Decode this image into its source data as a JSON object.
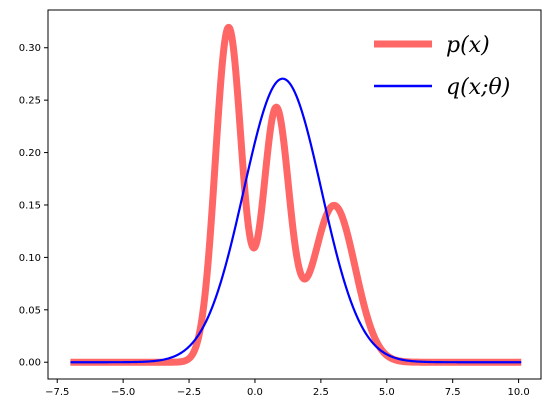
{
  "chart_data": {
    "type": "line",
    "title": "",
    "xlabel": "",
    "ylabel": "",
    "xlim": [
      -7.85,
      10.85
    ],
    "ylim": [
      -0.016,
      0.336
    ],
    "x_range": [
      -7,
      10.1
    ],
    "xticks": [
      -7.5,
      -5.0,
      -2.5,
      0.0,
      2.5,
      5.0,
      7.5,
      10.0
    ],
    "xtick_labels": [
      "−7.5",
      "−5.0",
      "−2.5",
      "0.0",
      "2.5",
      "5.0",
      "7.5",
      "10.0"
    ],
    "yticks": [
      0.0,
      0.05,
      0.1,
      0.15,
      0.2,
      0.25,
      0.3
    ],
    "ytick_labels": [
      "0.00",
      "0.05",
      "0.10",
      "0.15",
      "0.20",
      "0.25",
      "0.30"
    ],
    "grid": false,
    "legend_position": "top-right",
    "series": [
      {
        "name": "p(x)",
        "color": "#ff6666",
        "kind": "gaussian-mixture",
        "components": [
          {
            "weight": 0.4,
            "mean": -1.0,
            "std": 0.5
          },
          {
            "weight": 0.3,
            "mean": 0.8,
            "std": 0.5
          },
          {
            "weight": 0.3,
            "mean": 3.0,
            "std": 0.8
          }
        ]
      },
      {
        "name": "q(x;θ)",
        "color": "#0000ff",
        "kind": "gaussian-mixture",
        "components": [
          {
            "weight": 1.0,
            "mean": 1.05,
            "std": 1.475
          }
        ]
      }
    ]
  }
}
